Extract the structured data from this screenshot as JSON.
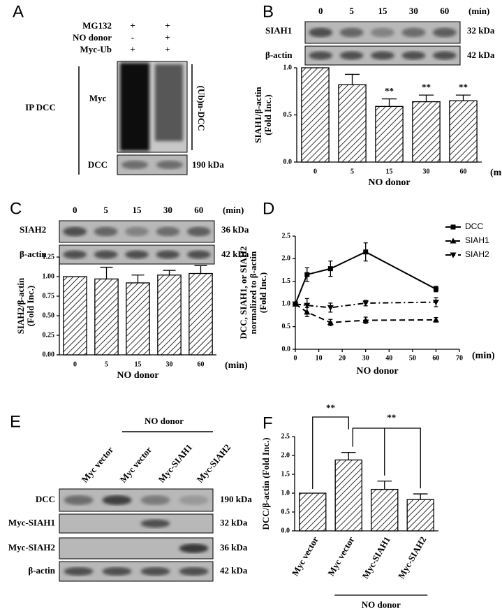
{
  "blot_A": {
    "label": "A",
    "conditions": [
      {
        "name": "MG132",
        "signs": [
          "+",
          "+"
        ]
      },
      {
        "name": "NO donor",
        "signs": [
          "-",
          "+"
        ]
      },
      {
        "name": "Myc-Ub",
        "signs": [
          "+",
          "+"
        ]
      }
    ],
    "group": "IP DCC",
    "rows": [
      "Myc",
      "DCC"
    ],
    "band_note": "(Ub)n-DCC",
    "kda": "190 kDa"
  },
  "blot_B": {
    "label": "B",
    "times": [
      "0",
      "5",
      "15",
      "30",
      "60"
    ],
    "unit": "(min)",
    "rows": [
      {
        "name": "SIAH1",
        "kda": "32 kDa"
      },
      {
        "name": "β-actin",
        "kda": "42 kDa"
      }
    ]
  },
  "blot_C": {
    "label": "C",
    "times": [
      "0",
      "5",
      "15",
      "30",
      "60"
    ],
    "unit": "(min)",
    "rows": [
      {
        "name": "SIAH2",
        "kda": "36 kDa"
      },
      {
        "name": "β-actin",
        "kda": "42 kDa"
      }
    ]
  },
  "blot_E": {
    "label": "E",
    "group_label": "NO donor",
    "lanes": [
      "Myc vector",
      "Myc vector",
      "Myc-SIAH1",
      "Myc-SIAH2"
    ],
    "rows": [
      {
        "name": "DCC",
        "kda": "190 kDa"
      },
      {
        "name": "Myc-SIAH1",
        "kda": "32 kDa"
      },
      {
        "name": "Myc-SIAH2",
        "kda": "36 kDa"
      },
      {
        "name": "β-actin",
        "kda": "42 kDa"
      }
    ]
  },
  "chart_data": [
    {
      "type": "bar",
      "categories": [
        "0",
        "5",
        "15",
        "30",
        "60"
      ],
      "values": [
        1.0,
        0.82,
        0.59,
        0.64,
        0.65
      ],
      "errors": [
        0,
        0.11,
        0.08,
        0.07,
        0.06
      ],
      "annotations": [
        null,
        null,
        "**",
        "**",
        "**"
      ],
      "ylim": [
        0,
        1.0
      ],
      "yticks": [
        {
          "value": 0,
          "label": "0.0"
        },
        0.5,
        {
          "value": 1,
          "label": "1.0"
        }
      ],
      "ylabel": [
        "SIAH1/β-actin",
        "(Fold Inc.)"
      ],
      "xlabel": "NO donor",
      "x_unit": "(min)",
      "color": "#000000"
    },
    {
      "type": "bar",
      "categories": [
        "0",
        "5",
        "15",
        "30",
        "60"
      ],
      "values": [
        1.0,
        0.97,
        0.92,
        1.02,
        1.04
      ],
      "errors": [
        0,
        0.15,
        0.1,
        0.06,
        0.1
      ],
      "ylim": [
        0,
        1.25
      ],
      "yticks": [
        {
          "value": 0,
          "label": "0.00"
        },
        0.25,
        {
          "value": 0.5,
          "label": "0.50"
        },
        0.75,
        {
          "value": 1,
          "label": "1.00"
        },
        1.25
      ],
      "ylabel": [
        "SIAH2/β-actin",
        "(Fold Inc.)"
      ],
      "xlabel": "NO donor",
      "x_unit": "(min)",
      "color": "#000000"
    },
    {
      "type": "line",
      "panel": "D",
      "x": [
        0,
        5,
        15,
        30,
        60
      ],
      "series": [
        {
          "name": "DCC",
          "values": [
            1.0,
            1.65,
            1.78,
            2.15,
            1.33
          ],
          "errors": [
            0,
            0.15,
            0.17,
            0.2,
            0.06
          ],
          "marker": "square",
          "dash": "solid",
          "color": "#000000"
        },
        {
          "name": "SIAH1",
          "values": [
            1.0,
            0.82,
            0.59,
            0.64,
            0.65
          ],
          "errors": [
            0,
            0.1,
            0.07,
            0.07,
            0.05
          ],
          "marker": "triangle-up",
          "dash": "dashed",
          "color": "#000000"
        },
        {
          "name": "SIAH2",
          "values": [
            1.0,
            0.97,
            0.92,
            1.02,
            1.04
          ],
          "errors": [
            0,
            0.15,
            0.1,
            0.06,
            0.1
          ],
          "marker": "triangle-down",
          "dash": "dashdot",
          "color": "#000000"
        }
      ],
      "xlim": [
        0,
        70
      ],
      "xticks": [
        0,
        10,
        20,
        30,
        40,
        50,
        60,
        70
      ],
      "ylim": [
        0,
        2.5
      ],
      "yticks": [
        {
          "value": 0,
          "label": "0.0"
        },
        0.5,
        {
          "value": 1,
          "label": "1.0"
        },
        1.5,
        {
          "value": 2,
          "label": "2.0"
        },
        2.5
      ],
      "ylabel": [
        "DCC, SIAH1, or SIAH2",
        "normalized to β-actin",
        "(Fold Inc.)"
      ],
      "xlabel": "NO donor",
      "x_unit": "(min)"
    },
    {
      "type": "bar",
      "panel": "F",
      "categories": [
        "Myc vector",
        "Myc vector",
        "Myc-SIAH1",
        "Myc-SIAH2"
      ],
      "values": [
        1.0,
        1.88,
        1.1,
        0.83
      ],
      "errors": [
        0,
        0.2,
        0.22,
        0.15
      ],
      "comparisons": [
        "**",
        "**"
      ],
      "group_label": "NO donor",
      "ylim": [
        0,
        2.5
      ],
      "yticks": [
        {
          "value": 0,
          "label": "0.0"
        },
        0.5,
        {
          "value": 1,
          "label": "1.0"
        },
        1.5,
        {
          "value": 2,
          "label": "2.0"
        },
        2.5
      ],
      "ylabel": [
        "DCC/β-actin (Fold Inc.)"
      ],
      "color": "#000000"
    }
  ]
}
